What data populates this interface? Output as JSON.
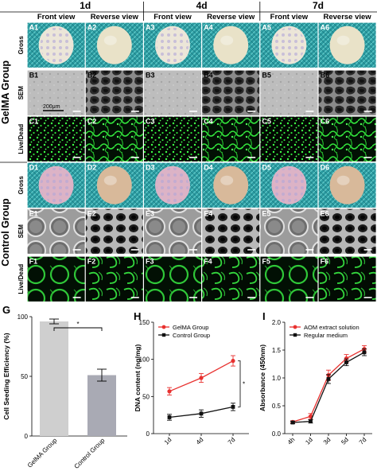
{
  "figure": {
    "days": [
      "1d",
      "4d",
      "7d"
    ],
    "view_headers": [
      "Front view",
      "Reverse view",
      "Front view",
      "Reverse view",
      "Front view",
      "Reverse view"
    ],
    "group_labels": [
      "GelMA Group",
      "Control Group"
    ],
    "row_labels": [
      "Gross",
      "SEM",
      "Live/Dead",
      "Gross",
      "SEM",
      "Live/Dead"
    ],
    "row_letters": [
      "A",
      "B",
      "C",
      "D",
      "E",
      "F"
    ],
    "cell_numbers": [
      "1",
      "2",
      "3",
      "4",
      "5",
      "6"
    ],
    "scale_bar_label": "200μm"
  },
  "chart_data": [
    {
      "panel": "G",
      "type": "bar",
      "categories": [
        "GelMA Group",
        "Control Group"
      ],
      "values": [
        96,
        51
      ],
      "errors": [
        2,
        5
      ],
      "ylabel": "Cell Seeding Efficiency (%)",
      "ylim": [
        0,
        100
      ],
      "yticks": [
        0,
        50,
        100
      ],
      "bar_colors": [
        "#cfcfcf",
        "#a9aab4"
      ],
      "significance": "*"
    },
    {
      "panel": "H",
      "type": "line",
      "categories": [
        "1d",
        "4d",
        "7d"
      ],
      "series": [
        {
          "name": "GelMA Group",
          "values": [
            57,
            75,
            98
          ],
          "errors": [
            5,
            6,
            7
          ],
          "color": "#e8312f"
        },
        {
          "name": "Control Group",
          "values": [
            22,
            27,
            36
          ],
          "errors": [
            4,
            5,
            5
          ],
          "color": "#111111"
        }
      ],
      "ylabel": "DNA content (ng/mg)",
      "ylim": [
        0,
        150
      ],
      "yticks": [
        0,
        50,
        100,
        150
      ],
      "significance": "*",
      "legend": "top-left"
    },
    {
      "panel": "I",
      "type": "line",
      "categories": [
        "4h",
        "1d",
        "3d",
        "5d",
        "7d"
      ],
      "series": [
        {
          "name": "AOM extract solution",
          "values": [
            0.21,
            0.31,
            1.05,
            1.35,
            1.52
          ],
          "errors": [
            0.02,
            0.05,
            0.09,
            0.07,
            0.06
          ],
          "color": "#e8312f"
        },
        {
          "name": "Regular medium",
          "values": [
            0.2,
            0.22,
            0.98,
            1.28,
            1.46
          ],
          "errors": [
            0.02,
            0.03,
            0.08,
            0.06,
            0.06
          ],
          "color": "#111111"
        }
      ],
      "ylabel": "Absorbance (450nm)",
      "ylim": [
        0,
        2
      ],
      "yticks": [
        0.0,
        0.5,
        1.0,
        1.5,
        2.0
      ],
      "legend": "top-left"
    }
  ]
}
